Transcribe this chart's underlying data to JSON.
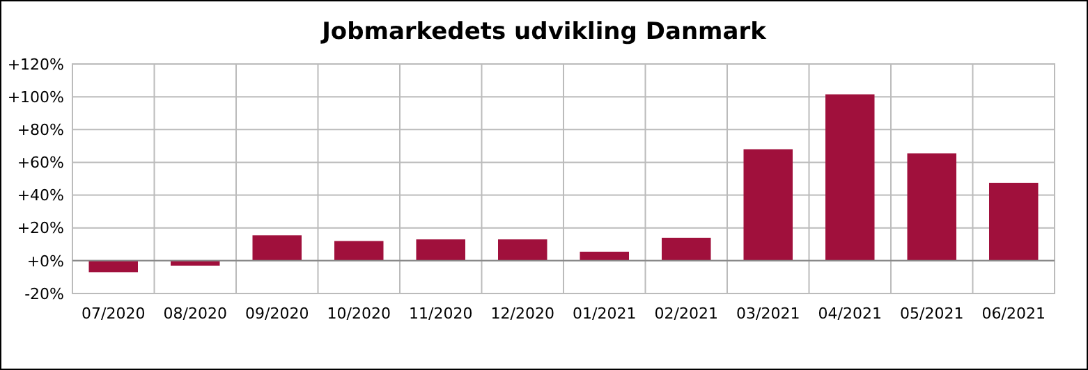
{
  "chart_data": {
    "type": "bar",
    "title": "Jobmarkedets udvikling Danmark",
    "categories": [
      "07/2020",
      "08/2020",
      "09/2020",
      "10/2020",
      "11/2020",
      "12/2020",
      "01/2021",
      "02/2021",
      "03/2021",
      "04/2021",
      "05/2021",
      "06/2021"
    ],
    "values": [
      -7,
      -3,
      15.5,
      12,
      13,
      13,
      5.5,
      14,
      68,
      101.5,
      65.5,
      47.5
    ],
    "color": "#a0103c",
    "ylim": [
      -20,
      120
    ],
    "yticks": [
      {
        "value": -20,
        "label": "-20%"
      },
      {
        "value": 0,
        "label": "+0%"
      },
      {
        "value": 20,
        "label": "+20%"
      },
      {
        "value": 40,
        "label": "+40%"
      },
      {
        "value": 60,
        "label": "+60%"
      },
      {
        "value": 80,
        "label": "+80%"
      },
      {
        "value": 100,
        "label": "+100%"
      },
      {
        "value": 120,
        "label": "+120%"
      }
    ],
    "grid": true
  }
}
